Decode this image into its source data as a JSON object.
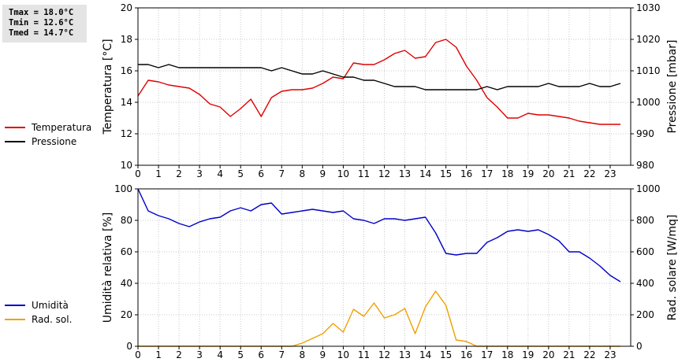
{
  "stats": {
    "tmax": "Tmax = 18.0°C",
    "tmin": "Tmin = 12.6°C",
    "tmed": "Tmed = 14.7°C"
  },
  "chart_data": [
    {
      "type": "line",
      "xlim": [
        0,
        24
      ],
      "x_ticks": [
        0,
        1,
        2,
        3,
        4,
        5,
        6,
        7,
        8,
        9,
        10,
        11,
        12,
        13,
        14,
        15,
        16,
        17,
        18,
        19,
        20,
        21,
        22,
        23
      ],
      "ylabel": "Temperatura [°C]",
      "ylim": [
        10,
        20
      ],
      "y_ticks": [
        10,
        12,
        14,
        16,
        18,
        20
      ],
      "y2label": "Pressione [mbar]",
      "y2lim": [
        980,
        1030
      ],
      "y2_ticks": [
        980,
        990,
        1000,
        1010,
        1020,
        1030
      ],
      "grid": true,
      "legend_position": "left",
      "series": [
        {
          "name": "Temperatura",
          "axis": "left",
          "color": "#e00000",
          "x": [
            0,
            0.5,
            1,
            1.5,
            2,
            2.5,
            3,
            3.5,
            4,
            4.5,
            5,
            5.5,
            6,
            6.5,
            7,
            7.5,
            8,
            8.5,
            9,
            9.5,
            10,
            10.5,
            11,
            11.5,
            12,
            12.5,
            13,
            13.5,
            14,
            14.5,
            15,
            15.5,
            16,
            16.5,
            17,
            17.5,
            18,
            18.5,
            19,
            19.5,
            20,
            20.5,
            21,
            21.5,
            22,
            22.5,
            23,
            23.5
          ],
          "values": [
            14.4,
            15.4,
            15.3,
            15.1,
            15.0,
            14.9,
            14.5,
            13.9,
            13.7,
            13.1,
            13.6,
            14.2,
            13.1,
            14.3,
            14.7,
            14.8,
            14.8,
            14.9,
            15.2,
            15.6,
            15.5,
            16.5,
            16.4,
            16.4,
            16.7,
            17.1,
            17.3,
            16.8,
            16.9,
            17.8,
            18.0,
            17.5,
            16.3,
            15.4,
            14.3,
            13.7,
            13.0,
            13.0,
            13.3,
            13.2,
            13.2,
            13.1,
            13.0,
            12.8,
            12.7,
            12.6,
            12.6,
            12.6
          ]
        },
        {
          "name": "Pressione",
          "axis": "right",
          "color": "#000000",
          "x": [
            0,
            0.5,
            1,
            1.5,
            2,
            2.5,
            3,
            3.5,
            4,
            4.5,
            5,
            5.5,
            6,
            6.5,
            7,
            7.5,
            8,
            8.5,
            9,
            9.5,
            10,
            10.5,
            11,
            11.5,
            12,
            12.5,
            13,
            13.5,
            14,
            14.5,
            15,
            15.5,
            16,
            16.5,
            17,
            17.5,
            18,
            18.5,
            19,
            19.5,
            20,
            20.5,
            21,
            21.5,
            22,
            22.5,
            23,
            23.5
          ],
          "values": [
            1012,
            1012,
            1011,
            1012,
            1011,
            1011,
            1011,
            1011,
            1011,
            1011,
            1011,
            1011,
            1011,
            1010,
            1011,
            1010,
            1009,
            1009,
            1010,
            1009,
            1008,
            1008,
            1007,
            1007,
            1006,
            1005,
            1005,
            1005,
            1004,
            1004,
            1004,
            1004,
            1004,
            1004,
            1005,
            1004,
            1005,
            1005,
            1005,
            1005,
            1006,
            1005,
            1005,
            1005,
            1006,
            1005,
            1005,
            1006
          ]
        }
      ]
    },
    {
      "type": "line",
      "xlim": [
        0,
        24
      ],
      "x_ticks": [
        0,
        1,
        2,
        3,
        4,
        5,
        6,
        7,
        8,
        9,
        10,
        11,
        12,
        13,
        14,
        15,
        16,
        17,
        18,
        19,
        20,
        21,
        22,
        23
      ],
      "ylabel": "Umidità relativa [%]",
      "ylim": [
        0,
        100
      ],
      "y_ticks": [
        0,
        20,
        40,
        60,
        80,
        100
      ],
      "y2label": "Rad. solare [W/mq]",
      "y2lim": [
        0,
        1000
      ],
      "y2_ticks": [
        0,
        200,
        400,
        600,
        800,
        1000
      ],
      "grid": true,
      "legend_position": "left",
      "series": [
        {
          "name": "Umidità",
          "axis": "left",
          "color": "#0000c8",
          "x": [
            0,
            0.5,
            1,
            1.5,
            2,
            2.5,
            3,
            3.5,
            4,
            4.5,
            5,
            5.5,
            6,
            6.5,
            7,
            7.5,
            8,
            8.5,
            9,
            9.5,
            10,
            10.5,
            11,
            11.5,
            12,
            12.5,
            13,
            13.5,
            14,
            14.5,
            15,
            15.5,
            16,
            16.5,
            17,
            17.5,
            18,
            18.5,
            19,
            19.5,
            20,
            20.5,
            21,
            21.5,
            22,
            22.5,
            23,
            23.5
          ],
          "values": [
            100,
            86,
            83,
            81,
            78,
            76,
            79,
            81,
            82,
            86,
            88,
            86,
            90,
            91,
            84,
            85,
            86,
            87,
            86,
            85,
            86,
            81,
            80,
            78,
            81,
            81,
            80,
            81,
            82,
            72,
            59,
            58,
            59,
            59,
            66,
            69,
            73,
            74,
            73,
            74,
            71,
            67,
            60,
            60,
            56,
            51,
            45,
            41
          ]
        },
        {
          "name": "Rad. sol.",
          "axis": "right",
          "color": "#f0a000",
          "x": [
            0,
            0.5,
            1,
            1.5,
            2,
            2.5,
            3,
            3.5,
            4,
            4.5,
            5,
            5.5,
            6,
            6.5,
            7,
            7.5,
            8,
            8.5,
            9,
            9.5,
            10,
            10.5,
            11,
            11.5,
            12,
            12.5,
            13,
            13.5,
            14,
            14.5,
            15,
            15.5,
            16,
            16.5,
            17,
            17.5,
            18,
            18.5,
            19,
            19.5,
            20,
            20.5,
            21,
            21.5,
            22,
            22.5,
            23,
            23.5
          ],
          "values": [
            0,
            0,
            0,
            0,
            0,
            0,
            0,
            0,
            0,
            0,
            0,
            0,
            0,
            0,
            0,
            0,
            20,
            50,
            80,
            145,
            90,
            235,
            190,
            275,
            180,
            200,
            240,
            80,
            250,
            350,
            260,
            40,
            30,
            0,
            0,
            0,
            0,
            0,
            0,
            0,
            0,
            0,
            0,
            0,
            0,
            0,
            0,
            0
          ]
        }
      ]
    }
  ]
}
